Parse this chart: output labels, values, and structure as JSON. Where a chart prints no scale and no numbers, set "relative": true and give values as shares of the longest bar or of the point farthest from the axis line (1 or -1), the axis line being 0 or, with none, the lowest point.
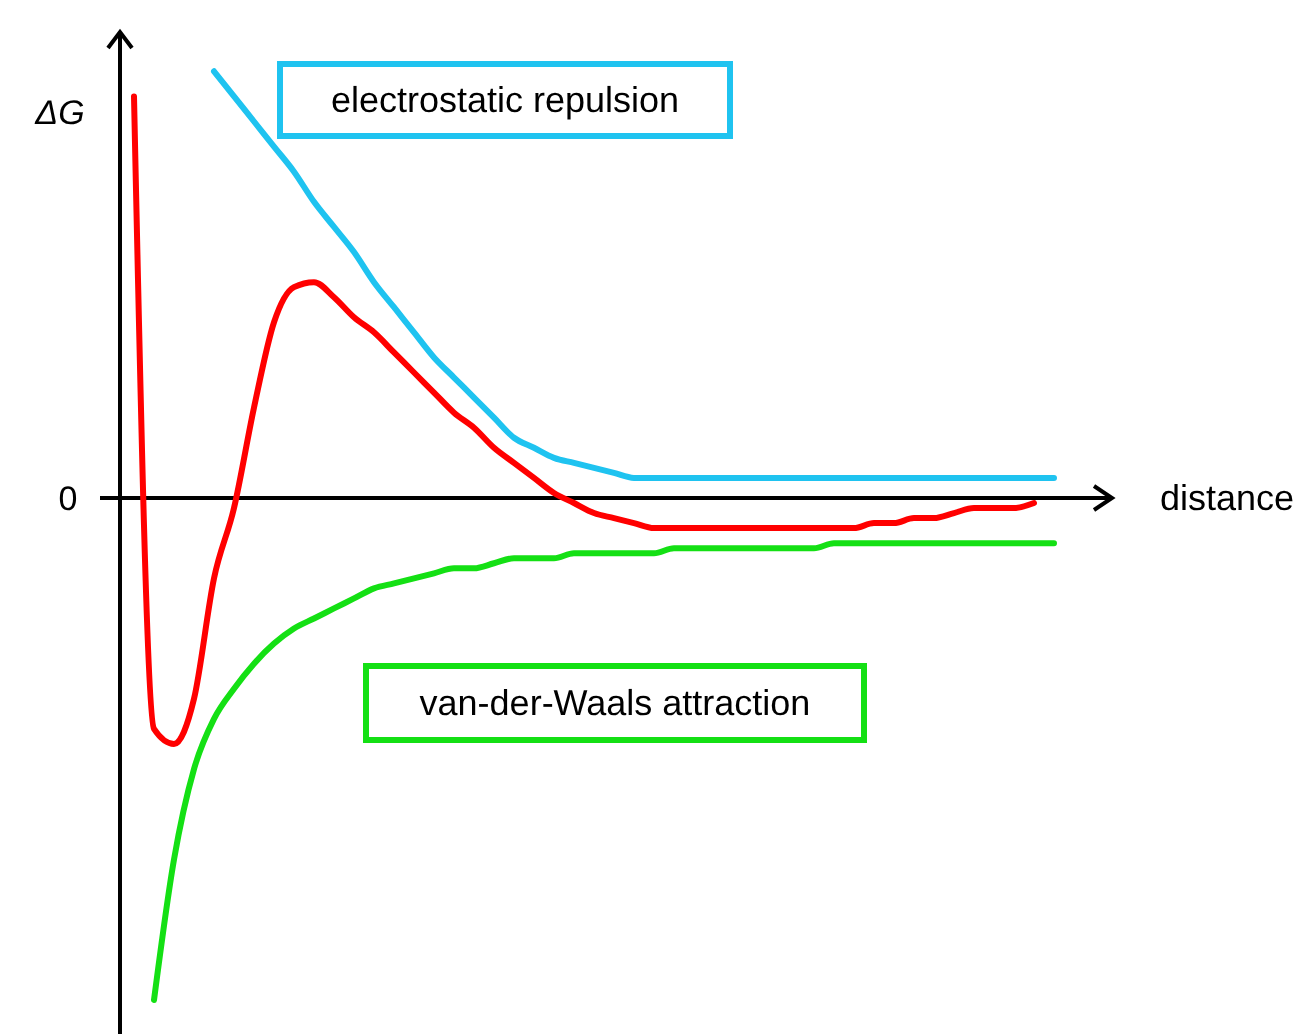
{
  "chart_data": {
    "type": "line",
    "relative": true,
    "ylabel": "ΔG",
    "xlabel": "distance",
    "annotations": [
      "0"
    ],
    "categories": [
      null,
      null,
      null,
      null,
      null,
      null,
      null,
      null,
      null,
      null,
      null,
      null,
      null,
      null,
      null,
      null,
      null,
      null,
      null,
      null,
      null,
      null,
      null,
      null,
      null,
      null,
      null,
      null,
      null,
      null,
      null,
      null,
      null,
      null,
      null,
      null,
      null,
      null,
      null,
      null,
      null,
      null,
      null,
      null,
      null,
      null,
      null
    ],
    "series": [
      {
        "color": "#ff0000",
        "values": [
          0.8,
          -0.46,
          -0.49,
          -0.4,
          -0.16,
          -0.02,
          0.18,
          0.35,
          0.42,
          0.43,
          0.4,
          0.36,
          0.33,
          0.29,
          0.25,
          0.21,
          0.17,
          0.14,
          0.1,
          0.07,
          0.04,
          0.01,
          -0.01,
          -0.03,
          -0.04,
          -0.05,
          -0.06,
          -0.06,
          -0.06,
          -0.06,
          -0.06,
          -0.06,
          -0.06,
          -0.06,
          -0.06,
          -0.06,
          -0.06,
          -0.05,
          -0.05,
          -0.04,
          -0.04,
          -0.03,
          -0.02,
          -0.02,
          -0.02,
          -0.01,
          null
        ]
      },
      {
        "name": "electrostatic repulsion",
        "color": "#1fc3f0",
        "values": [
          null,
          null,
          null,
          null,
          0.85,
          0.8,
          0.75,
          0.7,
          0.65,
          0.59,
          0.54,
          0.49,
          0.43,
          0.38,
          0.33,
          0.28,
          0.24,
          0.2,
          0.16,
          0.12,
          0.1,
          0.08,
          0.07,
          0.06,
          0.05,
          0.04,
          0.04,
          0.04,
          0.04,
          0.04,
          0.04,
          0.04,
          0.04,
          0.04,
          0.04,
          0.04,
          0.04,
          0.04,
          0.04,
          0.04,
          0.04,
          0.04,
          0.04,
          0.04,
          0.04,
          0.04,
          0.04
        ]
      },
      {
        "name": "van-der-Waals attraction",
        "color": "#14e014",
        "values": [
          null,
          -1,
          -0.72,
          -0.54,
          -0.44,
          -0.38,
          -0.33,
          -0.29,
          -0.26,
          -0.24,
          -0.22,
          -0.2,
          -0.18,
          -0.17,
          -0.16,
          -0.15,
          -0.14,
          -0.14,
          -0.13,
          -0.12,
          -0.12,
          -0.12,
          -0.11,
          -0.11,
          -0.11,
          -0.11,
          -0.11,
          -0.1,
          -0.1,
          -0.1,
          -0.1,
          -0.1,
          -0.1,
          -0.1,
          -0.1,
          -0.09,
          -0.09,
          -0.09,
          -0.09,
          -0.09,
          -0.09,
          -0.09,
          -0.09,
          -0.09,
          -0.09,
          -0.09,
          -0.09
        ]
      }
    ]
  }
}
